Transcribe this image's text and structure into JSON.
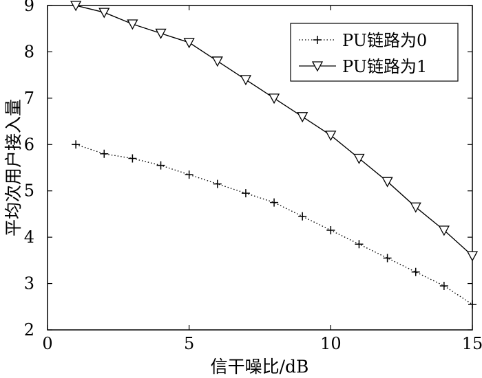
{
  "chart_data": {
    "type": "line",
    "xlabel": "信干噪比/dB",
    "ylabel": "平均次用户接入量",
    "xlim": [
      0,
      15
    ],
    "ylim": [
      2,
      9
    ],
    "xticks": [
      0,
      5,
      10,
      15
    ],
    "yticks": [
      2,
      3,
      4,
      5,
      6,
      7,
      8,
      9
    ],
    "grid": false,
    "legend_position": "top-right",
    "x": [
      1,
      2,
      3,
      4,
      5,
      6,
      7,
      8,
      9,
      10,
      11,
      12,
      13,
      14,
      15
    ],
    "series": [
      {
        "name": "PU链路为0",
        "marker": "plus",
        "line_style": "dotted",
        "color": "#000000",
        "values": [
          6.0,
          5.8,
          5.7,
          5.55,
          5.35,
          5.15,
          4.95,
          4.75,
          4.45,
          4.15,
          3.85,
          3.55,
          3.25,
          2.95,
          2.55
        ]
      },
      {
        "name": "PU链路为1",
        "marker": "triangle-down",
        "line_style": "solid",
        "color": "#000000",
        "values": [
          9.0,
          8.85,
          8.6,
          8.4,
          8.2,
          7.8,
          7.4,
          7.0,
          6.6,
          6.2,
          5.7,
          5.2,
          4.65,
          4.15,
          3.6
        ]
      }
    ]
  }
}
